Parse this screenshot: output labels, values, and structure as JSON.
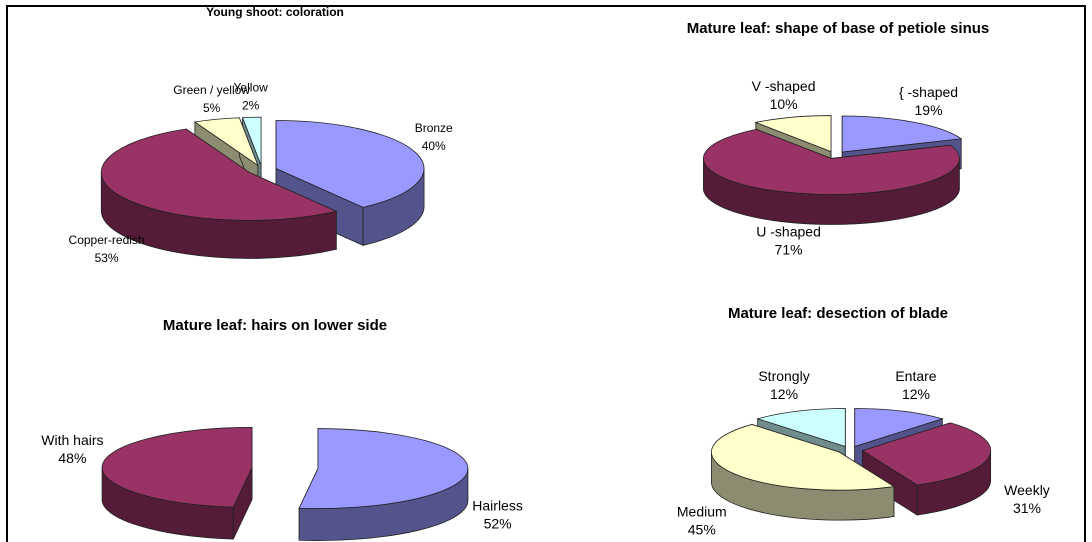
{
  "chart_data": [
    {
      "type": "pie",
      "title": "Young shoot: coloration",
      "categories": [
        "Bronze",
        "Copper-redish",
        "Green / yellow",
        "Yellow"
      ],
      "values": [
        40,
        53,
        5,
        2
      ],
      "value_labels": [
        "40%",
        "53%",
        "5%",
        "2%"
      ],
      "colors": [
        "#9999ff",
        "#993366",
        "#ffffcc",
        "#ccffff"
      ]
    },
    {
      "type": "pie",
      "title": "Mature leaf: shape of base of petiole sinus",
      "categories": [
        "{ -shaped",
        "U -shaped",
        "V -shaped"
      ],
      "values": [
        19,
        71,
        10
      ],
      "value_labels": [
        "19%",
        "71%",
        "10%"
      ],
      "colors": [
        "#9999ff",
        "#993366",
        "#ffffcc"
      ]
    },
    {
      "type": "pie",
      "title": "Mature leaf: hairs on lower side",
      "categories": [
        "Hairless",
        "With hairs"
      ],
      "values": [
        52,
        48
      ],
      "value_labels": [
        "52%",
        "48%"
      ],
      "colors": [
        "#9999ff",
        "#993366"
      ]
    },
    {
      "type": "pie",
      "title": "Mature leaf: desection of blade",
      "categories": [
        "Entare",
        "Weekly",
        "Medium",
        "Strongly"
      ],
      "values": [
        12,
        31,
        45,
        12
      ],
      "value_labels": [
        "12%",
        "31%",
        "45%",
        "12%"
      ],
      "colors": [
        "#9999ff",
        "#993366",
        "#ffffcc",
        "#ccffff"
      ]
    }
  ]
}
